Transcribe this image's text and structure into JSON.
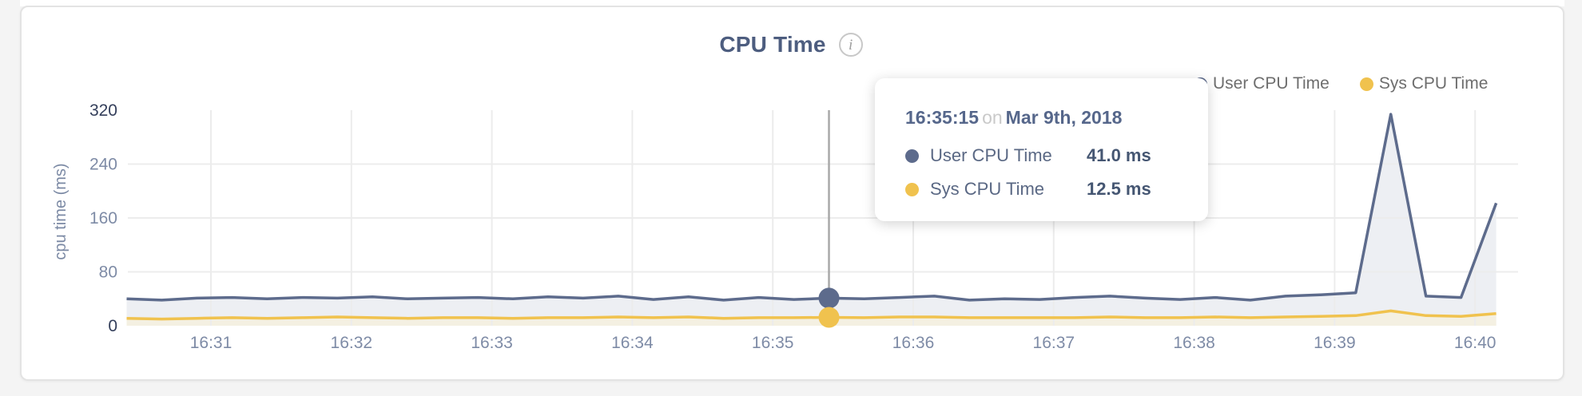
{
  "header": {
    "title": "CPU Time",
    "info_icon_glyph": "i"
  },
  "legend": {
    "items": [
      {
        "label": "User CPU Time",
        "color": "#5d6b8c"
      },
      {
        "label": "Sys CPU Time",
        "color": "#f0c24e"
      }
    ]
  },
  "tooltip": {
    "time": "16:35:15",
    "connector": "on",
    "date": "Mar 9th, 2018",
    "rows": [
      {
        "label": "User CPU Time",
        "value": "41.0 ms",
        "color": "#5d6b8c"
      },
      {
        "label": "Sys CPU Time",
        "value": "12.5 ms",
        "color": "#f0c24e"
      }
    ]
  },
  "chart_data": {
    "type": "area",
    "title": "CPU Time",
    "xlabel": "",
    "ylabel": "cpu time (ms)",
    "ylim": [
      0,
      320
    ],
    "y_ticks": [
      0,
      80,
      160,
      240,
      320
    ],
    "x_ticks": [
      "16:31",
      "16:32",
      "16:33",
      "16:34",
      "16:35",
      "16:36",
      "16:37",
      "16:38",
      "16:39",
      "16:40"
    ],
    "x_tick_minutes": [
      31,
      32,
      33,
      34,
      35,
      36,
      37,
      38,
      39,
      40
    ],
    "x_unit": "time of day (minutes after 16:00), samples every 15 s",
    "grid": true,
    "legend_position": "top-right",
    "x": [
      30.4,
      30.65,
      30.9,
      31.15,
      31.4,
      31.65,
      31.9,
      32.15,
      32.4,
      32.65,
      32.9,
      33.15,
      33.4,
      33.65,
      33.9,
      34.15,
      34.4,
      34.65,
      34.9,
      35.15,
      35.4,
      35.65,
      35.9,
      36.15,
      36.4,
      36.65,
      36.9,
      37.15,
      37.4,
      37.65,
      37.9,
      38.15,
      38.4,
      38.65,
      38.9,
      39.15,
      39.4,
      39.65,
      39.9,
      40.15
    ],
    "series": [
      {
        "name": "User CPU Time",
        "color": "#5d6b8c",
        "fill": "#edeff3",
        "values": [
          40,
          38,
          41,
          42,
          40,
          42,
          41,
          43,
          40,
          41,
          42,
          40,
          43,
          41,
          44,
          39,
          43,
          38,
          42,
          39,
          41,
          40,
          42,
          44,
          38,
          40,
          39,
          42,
          44,
          41,
          39,
          42,
          38,
          44,
          46,
          49,
          314,
          44,
          42,
          182
        ]
      },
      {
        "name": "Sys CPU Time",
        "color": "#f0c24e",
        "fill": "#f4f0e2",
        "values": [
          11,
          10,
          11,
          12,
          11,
          12,
          13,
          12,
          11,
          12,
          12,
          11,
          12,
          12,
          13,
          12,
          13,
          11,
          12,
          12,
          12.5,
          12,
          13,
          13,
          12,
          12,
          12,
          12,
          13,
          12,
          12,
          13,
          12,
          13,
          14,
          15,
          22,
          15,
          14,
          18
        ]
      }
    ],
    "highlight": {
      "x": 35.4,
      "time": "16:35:15",
      "date": "Mar 9th, 2018",
      "values": {
        "User CPU Time": 41.0,
        "Sys CPU Time": 12.5
      }
    },
    "colors": {
      "grid": "#ececec",
      "crosshair": "#a9a9a9",
      "tick_label": "#7e8ba6",
      "tick_label_extreme": "#343f5b",
      "axis_title": "#7b89a4"
    }
  }
}
